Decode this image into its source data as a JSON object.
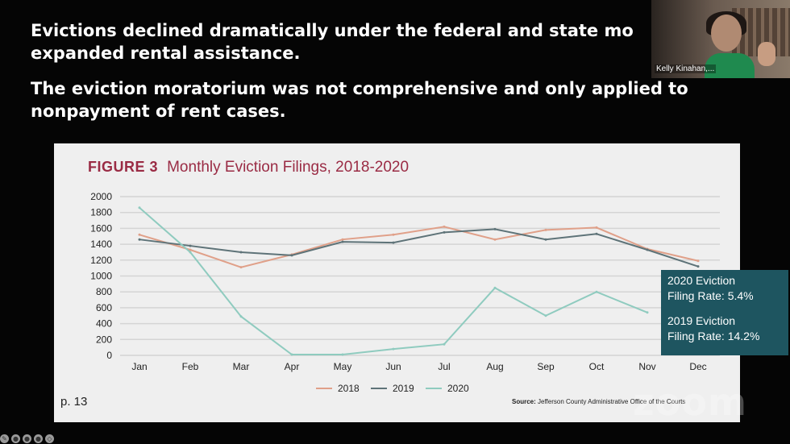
{
  "slide": {
    "bullets": [
      [
        "Evictions declined dramatically under the federal and state mo",
        "expanded rental assistance."
      ],
      [
        "The eviction moratorium was not comprehensive and only applied to",
        "nonpayment of rent cases."
      ]
    ],
    "page_number": "p. 13",
    "source_label": "Source:",
    "source_text": "Jefferson County Administrative Office of the Courts",
    "stats": [
      "2020 Eviction",
      "Filing Rate: 5.4%",
      "2019 Eviction",
      "Filing Rate: 14.2%"
    ],
    "colors": {
      "title": "#9a2b44",
      "series_2018": "#e0a089",
      "series_2019": "#5e7378",
      "series_2020": "#8fcbbf",
      "stats_bg": "#1e5560"
    }
  },
  "video": {
    "participant_name": "Kelly Kinahan,..."
  },
  "watermark": "zoom",
  "chart_data": {
    "type": "line",
    "figure_label": "FIGURE 3",
    "title": "Monthly Eviction Filings, 2018-2020",
    "categories": [
      "Jan",
      "Feb",
      "Mar",
      "Apr",
      "May",
      "Jun",
      "Jul",
      "Aug",
      "Sep",
      "Oct",
      "Nov",
      "Dec"
    ],
    "y_ticks": [
      0,
      200,
      400,
      600,
      800,
      1000,
      1200,
      1400,
      1600,
      1800,
      2000
    ],
    "ylim": [
      0,
      2000
    ],
    "grid": true,
    "legend_position": "bottom",
    "series": [
      {
        "name": "2018",
        "values": [
          1520,
          1330,
          1110,
          1270,
          1460,
          1520,
          1620,
          1460,
          1580,
          1610,
          1340,
          1190
        ]
      },
      {
        "name": "2019",
        "values": [
          1460,
          1380,
          1300,
          1260,
          1430,
          1420,
          1550,
          1590,
          1460,
          1530,
          1330,
          1120
        ]
      },
      {
        "name": "2020",
        "values": [
          1860,
          1300,
          490,
          10,
          10,
          80,
          140,
          850,
          500,
          800,
          540,
          null
        ]
      }
    ]
  }
}
